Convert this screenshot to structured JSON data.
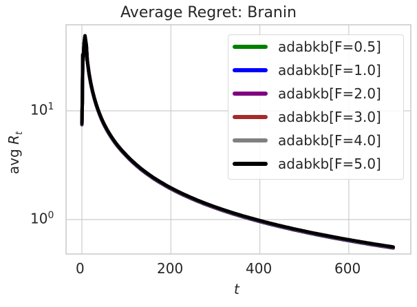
{
  "chart_data": {
    "type": "line",
    "title": "Average Regret: Branin",
    "xlabel": "t",
    "ylabel": "avg R_t",
    "xscale": "linear",
    "yscale": "log",
    "xlim": [
      -35,
      740
    ],
    "ylim": [
      0.48,
      65
    ],
    "xticks": [
      0,
      200,
      400,
      600
    ],
    "xtick_labels": [
      "0",
      "200",
      "400",
      "600"
    ],
    "yticks": [
      1,
      10
    ],
    "ytick_labels": [
      "10^0",
      "10^1"
    ],
    "grid": true,
    "legend_position": "upper right",
    "x": [
      0,
      1,
      2,
      3,
      5,
      7,
      10,
      15,
      20,
      30,
      40,
      50,
      75,
      100,
      150,
      200,
      250,
      300,
      400,
      500,
      600,
      700
    ],
    "series": [
      {
        "name": "adabkb[F=0.5]",
        "color": "#008000",
        "values": [
          7.6,
          12,
          33,
          30,
          42,
          49,
          40,
          28,
          22,
          15.5,
          12,
          9.8,
          6.8,
          5.2,
          3.5,
          2.65,
          2.15,
          1.8,
          1.37,
          1.1,
          0.93,
          0.61
        ]
      },
      {
        "name": "adabkb[F=1.0]",
        "color": "#0000ff",
        "values": [
          7.6,
          12,
          33,
          30,
          42,
          49,
          40,
          28,
          22,
          15.5,
          12,
          9.8,
          6.8,
          5.2,
          3.5,
          2.65,
          2.15,
          1.8,
          1.37,
          1.1,
          0.93,
          0.61
        ]
      },
      {
        "name": "adabkb[F=2.0]",
        "color": "#800080",
        "values": [
          7.6,
          12,
          33,
          30,
          42,
          49,
          40,
          28,
          22,
          15.5,
          12,
          9.8,
          6.8,
          5.2,
          3.5,
          2.65,
          2.15,
          1.8,
          1.37,
          1.1,
          0.93,
          0.61
        ]
      },
      {
        "name": "adabkb[F=3.0]",
        "color": "#a52a2a",
        "values": [
          7.6,
          12,
          33,
          30,
          42,
          49,
          40,
          28,
          22,
          15.5,
          12,
          9.8,
          6.8,
          5.2,
          3.5,
          2.65,
          2.15,
          1.8,
          1.37,
          1.1,
          0.93,
          0.61
        ]
      },
      {
        "name": "adabkb[F=4.0]",
        "color": "#808080",
        "values": [
          7.6,
          12,
          33,
          30,
          42,
          49,
          40,
          28,
          22,
          15.5,
          12,
          9.8,
          6.8,
          5.2,
          3.5,
          2.65,
          2.15,
          1.8,
          1.37,
          1.1,
          0.93,
          0.61
        ]
      },
      {
        "name": "adabkb[F=5.0]",
        "color": "#000000",
        "values": [
          7.6,
          12,
          33,
          30,
          42,
          49,
          40,
          28,
          22,
          15.5,
          12,
          9.8,
          6.8,
          5.2,
          3.5,
          2.65,
          2.15,
          1.8,
          1.37,
          1.1,
          0.93,
          0.61
        ]
      }
    ]
  },
  "labels": {
    "title": "Average Regret: Branin",
    "xlabel": "t",
    "ylabel_main": "avg ",
    "ylabel_sym": "R",
    "ylabel_sub": "t",
    "xtick_0": "0",
    "xtick_200": "200",
    "xtick_400": "400",
    "xtick_600": "600",
    "ytick_1_base": "10",
    "ytick_1_exp": "1",
    "ytick_0_base": "10",
    "ytick_0_exp": "0"
  },
  "legend": {
    "items": [
      {
        "label": "adabkb[F=0.5]",
        "color": "#008000"
      },
      {
        "label": "adabkb[F=1.0]",
        "color": "#0000ff"
      },
      {
        "label": "adabkb[F=2.0]",
        "color": "#800080"
      },
      {
        "label": "adabkb[F=3.0]",
        "color": "#a52a2a"
      },
      {
        "label": "adabkb[F=4.0]",
        "color": "#808080"
      },
      {
        "label": "adabkb[F=5.0]",
        "color": "#000000"
      }
    ]
  }
}
